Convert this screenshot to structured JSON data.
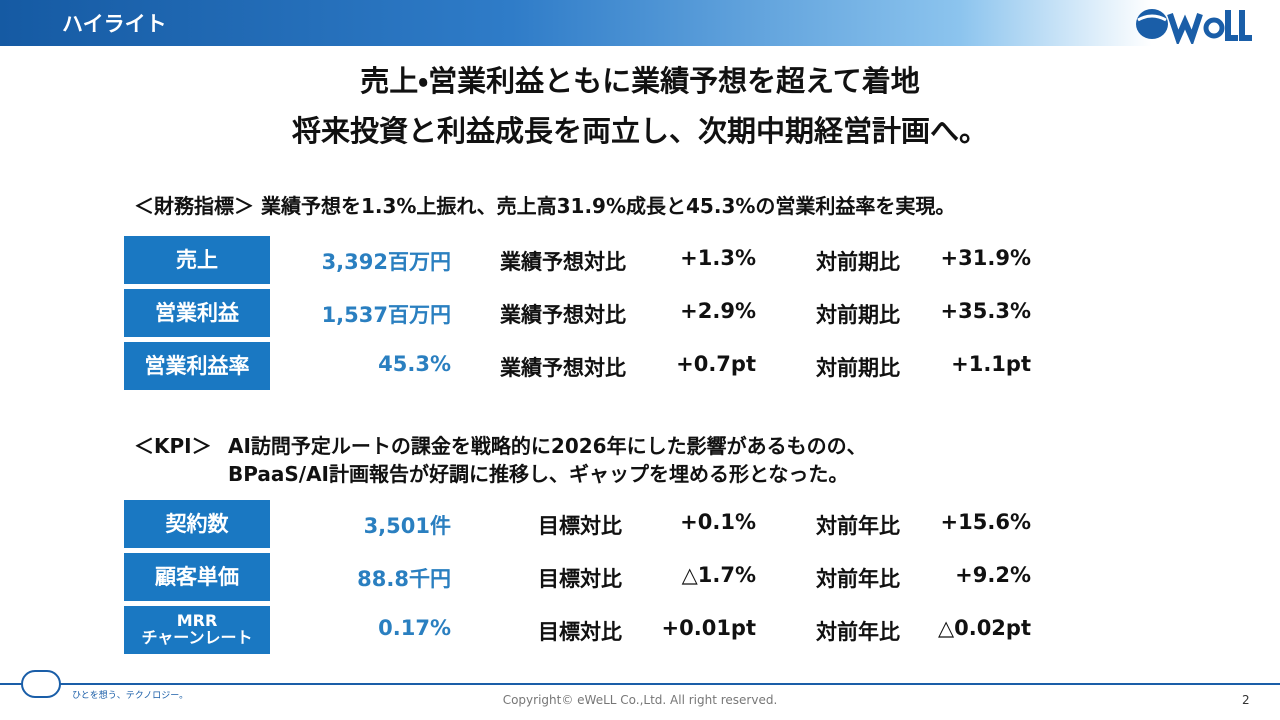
{
  "header": {
    "title": "ハイライト"
  },
  "headline": [
    "売上・営業利益ともに業績予想を超えて着地",
    "将来投資と利益成長を両立し、次期中期経営計画へ。"
  ],
  "financial": {
    "heading": "＜財務指標＞ 業績予想を1.3%上振れ、売上高31.9%成長と45.3%の営業利益率を実現。",
    "rows": [
      {
        "label": [
          "売上"
        ],
        "value": "3,392百万円",
        "comp1_label": "業績予想対比",
        "comp1_value": "+1.3%",
        "comp2_label": "対前期比",
        "comp2_value": "+31.9%"
      },
      {
        "label": [
          "営業利益"
        ],
        "value": "1,537百万円",
        "comp1_label": "業績予想対比",
        "comp1_value": "+2.9%",
        "comp2_label": "対前期比",
        "comp2_value": "+35.3%"
      },
      {
        "label": [
          "営業利益率"
        ],
        "value": "45.3%",
        "comp1_label": "業績予想対比",
        "comp1_value": "+0.7pt",
        "comp2_label": "対前期比",
        "comp2_value": "+1.1pt"
      }
    ]
  },
  "kpi": {
    "heading_prefix": "＜KPI＞",
    "heading_lines": [
      "AI訪問予定ルートの課金を戦略的に2026年にした影響があるものの、",
      "BPaaS/AI計画報告が好調に推移し、ギャップを埋める形となった。"
    ],
    "rows": [
      {
        "label": [
          "契約数"
        ],
        "value": "3,501件",
        "comp1_label": "目標対比",
        "comp1_value": "+0.1%",
        "comp2_label": "対前年比",
        "comp2_value": "+15.6%"
      },
      {
        "label": [
          "顧客単価"
        ],
        "value": "88.8千円",
        "comp1_label": "目標対比",
        "comp1_value": "△1.7%",
        "comp2_label": "対前年比",
        "comp2_value": "+9.2%"
      },
      {
        "label": [
          "MRR",
          "チャーンレート"
        ],
        "value": "0.17%",
        "comp1_label": "目標対比",
        "comp1_value": "+0.01pt",
        "comp2_label": "対前年比",
        "comp2_value": "△0.02pt"
      }
    ]
  },
  "footer": {
    "tagline": "ひとを想う、テクノロジー。",
    "copyright": "Copyright© eWeLL Co.,Ltd. All right reserved.",
    "page": "2"
  }
}
